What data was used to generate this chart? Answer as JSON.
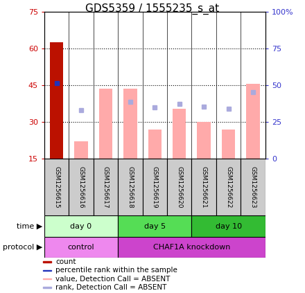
{
  "title": "GDS5359 / 1555235_s_at",
  "samples": [
    "GSM1256615",
    "GSM1256616",
    "GSM1256617",
    "GSM1256618",
    "GSM1256619",
    "GSM1256620",
    "GSM1256621",
    "GSM1256622",
    "GSM1256623"
  ],
  "count_values": [
    62.5,
    null,
    null,
    null,
    null,
    null,
    null,
    null,
    null
  ],
  "percentile_rank_left": [
    46.0,
    null,
    null,
    null,
    null,
    null,
    null,
    null,
    null
  ],
  "pink_bar_values": [
    null,
    22.0,
    43.5,
    43.5,
    27.0,
    35.5,
    30.0,
    27.0,
    45.5
  ],
  "blue_square_right": [
    null,
    33.0,
    null,
    38.5,
    35.0,
    37.5,
    35.5,
    34.0,
    45.5
  ],
  "ylim_left": [
    15,
    75
  ],
  "ylim_right": [
    0,
    100
  ],
  "yticks_left": [
    15,
    30,
    45,
    60,
    75
  ],
  "yticks_right": [
    0,
    25,
    50,
    75,
    100
  ],
  "ytick_labels_right": [
    "0",
    "25",
    "50",
    "75",
    "100%"
  ],
  "left_axis_color": "#cc0000",
  "right_axis_color": "#3333cc",
  "pink_color": "#ffaaaa",
  "blue_sq_color": "#aaaadd",
  "dark_red_color": "#bb1100",
  "dark_blue_color": "#2233bb",
  "time_groups": [
    {
      "label": "day 0",
      "size": 3,
      "color": "#ccffcc"
    },
    {
      "label": "day 5",
      "size": 3,
      "color": "#55dd55"
    },
    {
      "label": "day 10",
      "size": 3,
      "color": "#33bb33"
    }
  ],
  "protocol_groups": [
    {
      "label": "control",
      "size": 3,
      "color": "#ee88ee"
    },
    {
      "label": "CHAF1A knockdown",
      "size": 6,
      "color": "#cc44cc"
    }
  ],
  "sample_bg_color": "#cccccc",
  "legend_items": [
    {
      "label": "count",
      "color": "#bb1100"
    },
    {
      "label": "percentile rank within the sample",
      "color": "#2233bb"
    },
    {
      "label": "value, Detection Call = ABSENT",
      "color": "#ffaaaa"
    },
    {
      "label": "rank, Detection Call = ABSENT",
      "color": "#aaaadd"
    }
  ]
}
